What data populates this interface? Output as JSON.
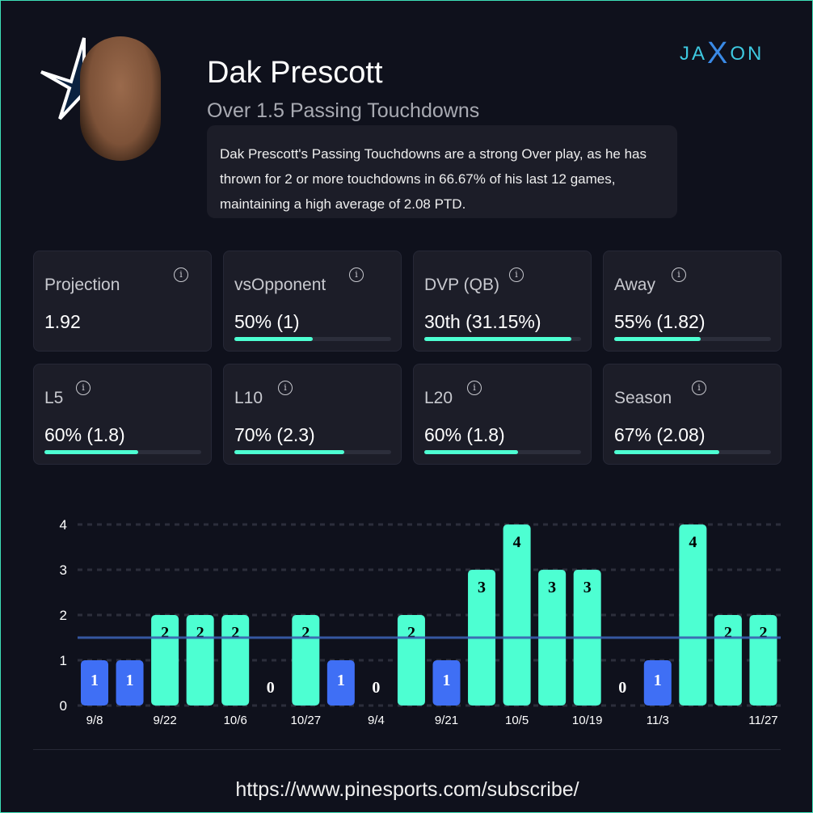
{
  "player": {
    "name": "Dak Prescott",
    "prop": "Over 1.5 Passing Touchdowns",
    "description": "Dak Prescott's Passing Touchdowns are a strong Over play, as he has thrown for 2 or more touchdowns in 66.67% of his last 12 games, maintaining a high average of 2.08 PTD."
  },
  "logo": {
    "text": "JAXON"
  },
  "cards": [
    {
      "label": "Projection",
      "value": "1.92",
      "bar": null
    },
    {
      "label": "vsOpponent",
      "value": "50% (1)",
      "bar": 50
    },
    {
      "label": "DVP (QB)",
      "value": "30th (31.15%)",
      "bar": 94
    },
    {
      "label": "Away",
      "value": "55% (1.82)",
      "bar": 55
    },
    {
      "label": "L5",
      "value": "60% (1.8)",
      "bar": 60
    },
    {
      "label": "L10",
      "value": "70% (2.3)",
      "bar": 70
    },
    {
      "label": "L20",
      "value": "60% (1.8)",
      "bar": 60
    },
    {
      "label": "Season",
      "value": "67% (2.08)",
      "bar": 67
    }
  ],
  "chart_data": {
    "type": "bar",
    "values": [
      1,
      1,
      2,
      2,
      2,
      0,
      2,
      1,
      0,
      2,
      1,
      3,
      4,
      3,
      3,
      0,
      1,
      4,
      2,
      2
    ],
    "categories": [
      "9/8",
      "",
      "9/22",
      "",
      "10/6",
      "",
      "10/27",
      "",
      "9/4",
      "",
      "9/21",
      "",
      "10/5",
      "",
      "10/19",
      "",
      "11/3",
      "",
      "",
      "11/27"
    ],
    "threshold": 1.5,
    "ylim": [
      0,
      4
    ],
    "yticks": [
      0,
      1,
      2,
      3,
      4
    ],
    "colors": {
      "over": "#4dffd2",
      "under": "#3f6ff5",
      "line": "#3a5fb0"
    }
  },
  "footer": {
    "url": "https://www.pinesports.com/subscribe/"
  }
}
